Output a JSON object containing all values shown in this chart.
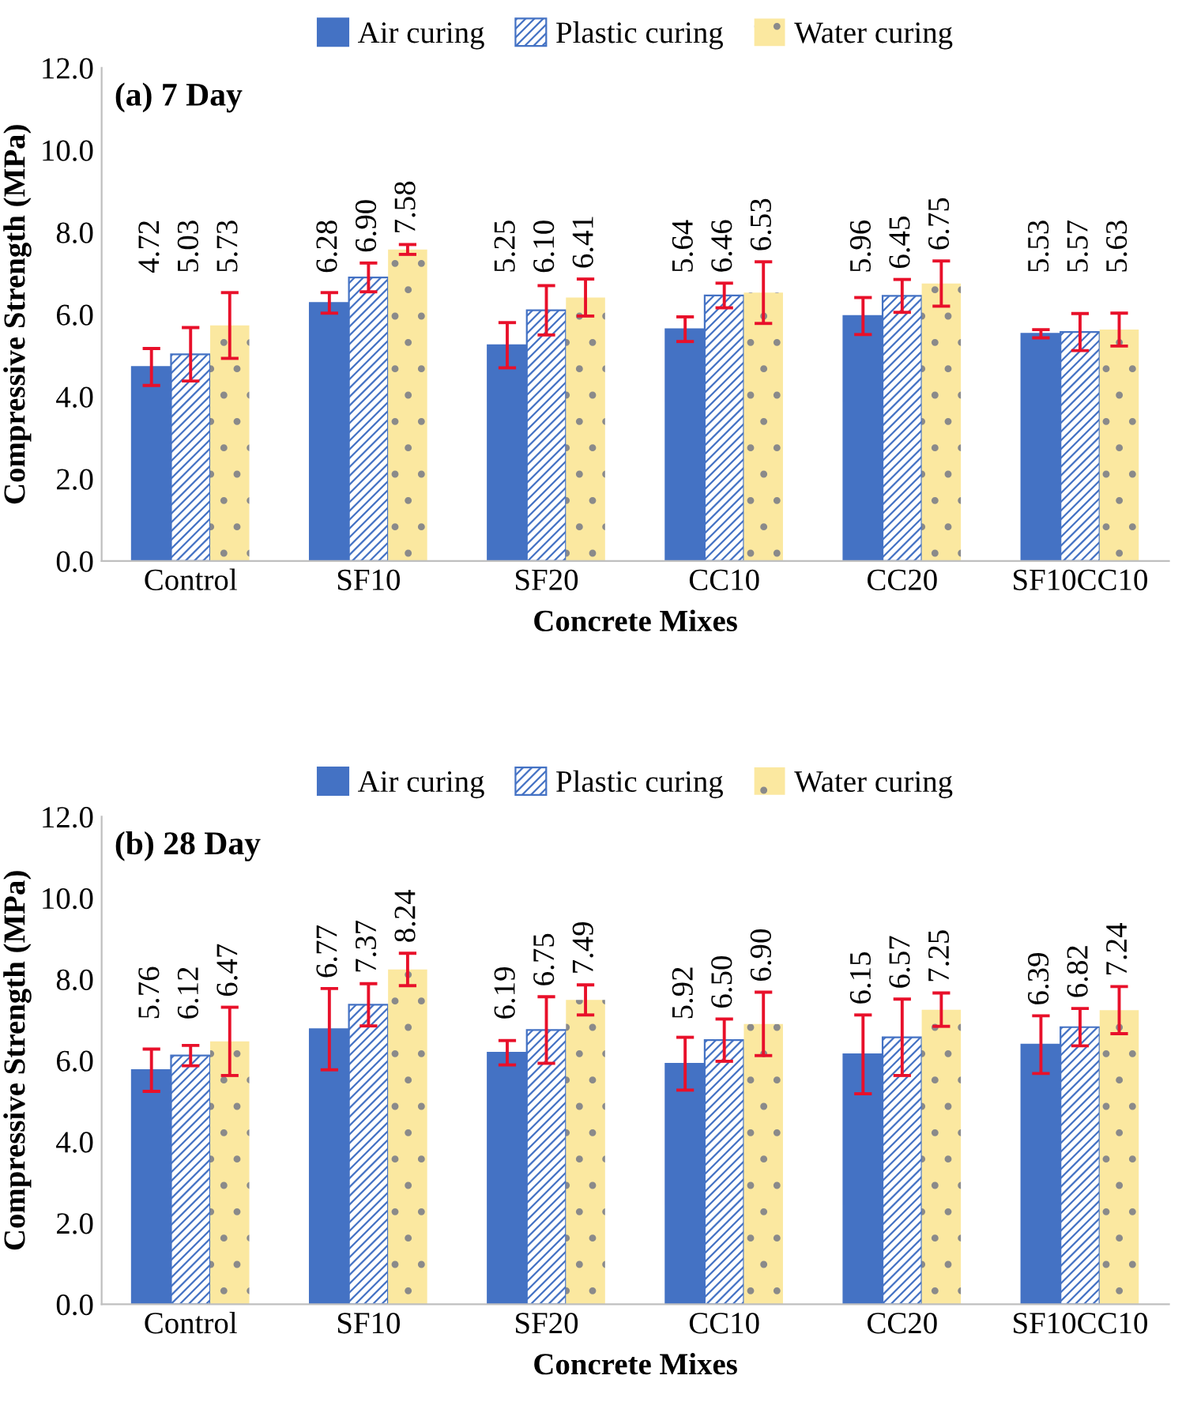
{
  "chart_data": [
    {
      "type": "bar",
      "title": null,
      "annotations": [
        "(a) 7 Day"
      ],
      "xlabel": "Concrete Mixes",
      "ylabel": "Compressive Strength (MPa)",
      "categories": [
        "Control",
        "SF10",
        "SF20",
        "CC10",
        "CC20",
        "SF10CC10"
      ],
      "series": [
        {
          "name": "Air curing",
          "color": "#4472c4",
          "values": [
            4.72,
            6.28,
            5.25,
            5.64,
            5.96,
            5.53
          ],
          "errors": [
            0.45,
            0.25,
            0.55,
            0.3,
            0.45,
            0.1
          ],
          "value_labels": [
            "4.72",
            "6.28",
            "5.25",
            "5.64",
            "5.96",
            "5.53"
          ]
        },
        {
          "name": "Plastic curing",
          "color": "#4472c4",
          "values": [
            5.03,
            6.9,
            6.1,
            6.46,
            6.45,
            5.57
          ],
          "errors": [
            0.65,
            0.35,
            0.6,
            0.3,
            0.4,
            0.45
          ],
          "value_labels": [
            "5.03",
            "6.90",
            "6.10",
            "6.46",
            "6.45",
            "5.57"
          ]
        },
        {
          "name": "Water curing",
          "color": "#fbe8a0",
          "values": [
            5.73,
            7.58,
            6.41,
            6.53,
            6.75,
            5.63
          ],
          "errors": [
            0.8,
            0.12,
            0.45,
            0.75,
            0.55,
            0.4
          ],
          "value_labels": [
            "5.73",
            "7.58",
            "6.41",
            "6.53",
            "6.75",
            "5.63"
          ]
        }
      ],
      "legend": "top",
      "grid": false,
      "ylim": [
        0,
        12
      ],
      "yticks": [
        {
          "value": 0,
          "label": "0.0"
        },
        {
          "value": 2,
          "label": "2.0"
        },
        {
          "value": 4,
          "label": "4.0"
        },
        {
          "value": 6,
          "label": "6.0"
        },
        {
          "value": 8,
          "label": "8.0"
        },
        {
          "value": 10,
          "label": "10.0"
        },
        {
          "value": 12,
          "label": "12.0"
        }
      ]
    },
    {
      "type": "bar",
      "title": null,
      "annotations": [
        "(b) 28 Day"
      ],
      "xlabel": "Concrete Mixes",
      "ylabel": "Compressive Strength (MPa)",
      "categories": [
        "Control",
        "SF10",
        "SF20",
        "CC10",
        "CC20",
        "SF10CC10"
      ],
      "series": [
        {
          "name": "Air curing",
          "color": "#4472c4",
          "values": [
            5.76,
            6.77,
            6.19,
            5.92,
            6.15,
            6.39
          ],
          "errors": [
            0.52,
            1.0,
            0.3,
            0.65,
            0.97,
            0.71
          ],
          "value_labels": [
            "5.76",
            "6.77",
            "6.19",
            "5.92",
            "6.15",
            "6.39"
          ]
        },
        {
          "name": "Plastic curing",
          "color": "#4472c4",
          "values": [
            6.12,
            7.37,
            6.75,
            6.5,
            6.57,
            6.82
          ],
          "errors": [
            0.25,
            0.52,
            0.82,
            0.52,
            0.94,
            0.46
          ],
          "value_labels": [
            "6.12",
            "7.37",
            "6.75",
            "6.50",
            "6.57",
            "6.82"
          ]
        },
        {
          "name": "Water curing",
          "color": "#fbe8a0",
          "values": [
            6.47,
            8.24,
            7.49,
            6.9,
            7.25,
            7.24
          ],
          "errors": [
            0.84,
            0.4,
            0.37,
            0.78,
            0.41,
            0.58
          ],
          "value_labels": [
            "6.47",
            "8.24",
            "7.49",
            "6.90",
            "7.25",
            "7.24"
          ]
        }
      ],
      "legend": "top",
      "grid": false,
      "ylim": [
        0,
        12
      ],
      "yticks": [
        {
          "value": 0,
          "label": "0.0"
        },
        {
          "value": 2,
          "label": "2.0"
        },
        {
          "value": 4,
          "label": "4.0"
        },
        {
          "value": 6,
          "label": "6.0"
        },
        {
          "value": 8,
          "label": "8.0"
        },
        {
          "value": 10,
          "label": "10.0"
        },
        {
          "value": 12,
          "label": "12.0"
        }
      ]
    }
  ]
}
